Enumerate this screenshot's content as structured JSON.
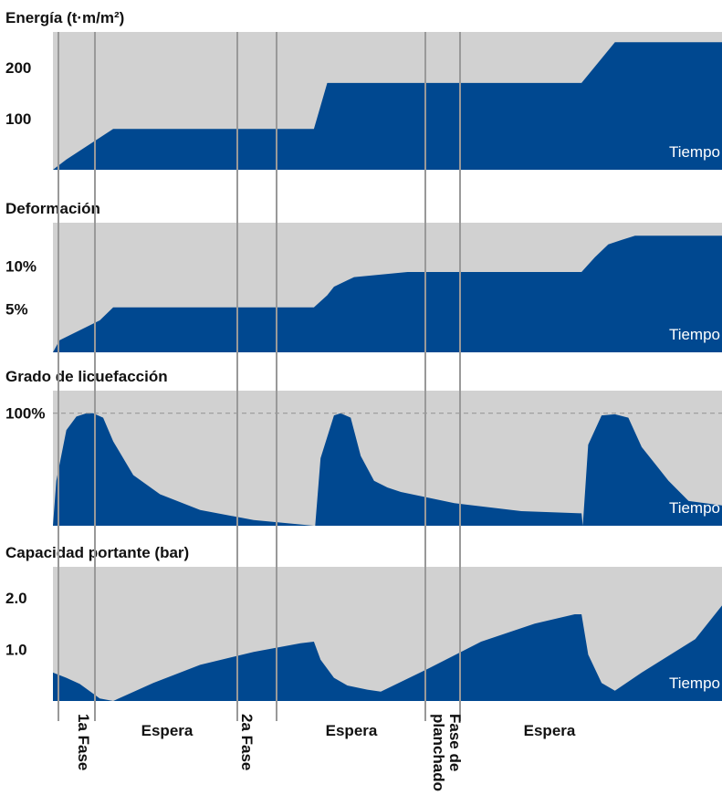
{
  "colors": {
    "fill": "#004890",
    "background_band": "#d1d1d1",
    "divider": "#999999",
    "dashed_line": "#999999",
    "text": "#111111",
    "axis_label_inside": "#ffffff"
  },
  "chart_data": [
    {
      "type": "area",
      "title": "Energía (t·m/m²)",
      "xlabel": "Tiempo",
      "ylim": [
        0,
        270
      ],
      "yticks": [
        {
          "value": 100,
          "label": "100"
        },
        {
          "value": 200,
          "label": "200"
        }
      ],
      "series": [
        {
          "x": [
            0.0,
            0.02,
            0.09,
            0.39,
            0.41,
            0.49,
            0.79,
            0.84,
            1.0
          ],
          "values": [
            0,
            20,
            80,
            80,
            170,
            170,
            170,
            250,
            250
          ]
        }
      ]
    },
    {
      "type": "area",
      "title": "Deformación",
      "xlabel": "Tiempo",
      "ylim": [
        0,
        15
      ],
      "yticks": [
        {
          "value": 5,
          "label": "5%"
        },
        {
          "value": 10,
          "label": "10%"
        }
      ],
      "series": [
        {
          "x": [
            0.0,
            0.01,
            0.07,
            0.09,
            0.39,
            0.41,
            0.42,
            0.45,
            0.53,
            0.79,
            0.81,
            0.83,
            0.85,
            0.87,
            1.0
          ],
          "values": [
            0,
            1.4,
            3.7,
            5.2,
            5.2,
            6.6,
            7.6,
            8.7,
            9.3,
            9.3,
            11.0,
            12.5,
            13.0,
            13.5,
            13.5
          ]
        }
      ]
    },
    {
      "type": "area",
      "title": "Grado de licuefacción",
      "xlabel": "Tiempo",
      "ylim": [
        0,
        120
      ],
      "yticks": [
        {
          "value": 100,
          "label": "100%"
        }
      ],
      "reference_line": 100,
      "series": [
        {
          "x": [
            0.0,
            0.005,
            0.02,
            0.035,
            0.05,
            0.06,
            0.075,
            0.09,
            0.12,
            0.16,
            0.22,
            0.3,
            0.39,
            0.392,
            0.4,
            0.42,
            0.43,
            0.445,
            0.46,
            0.48,
            0.5,
            0.52,
            0.6,
            0.7,
            0.79,
            0.792,
            0.8,
            0.82,
            0.84,
            0.86,
            0.88,
            0.92,
            0.95,
            1.0
          ],
          "values": [
            0,
            40,
            85,
            97,
            100,
            100,
            96,
            75,
            45,
            28,
            14,
            5,
            0,
            0,
            60,
            98,
            100,
            96,
            62,
            40,
            34,
            30,
            20,
            13,
            11,
            0,
            72,
            98,
            99,
            96,
            70,
            40,
            22,
            18
          ]
        }
      ]
    },
    {
      "type": "area",
      "title": "Capacidad portante (bar)",
      "xlabel": "Tiempo",
      "ylim": [
        0,
        2.6
      ],
      "yticks": [
        {
          "value": 1.0,
          "label": "1.0"
        },
        {
          "value": 2.0,
          "label": "2.0"
        }
      ],
      "series": [
        {
          "x": [
            0.0,
            0.02,
            0.04,
            0.07,
            0.09,
            0.15,
            0.22,
            0.3,
            0.37,
            0.39,
            0.4,
            0.42,
            0.44,
            0.47,
            0.49,
            0.56,
            0.64,
            0.72,
            0.78,
            0.79,
            0.8,
            0.82,
            0.84,
            0.88,
            0.96,
            1.0
          ],
          "values": [
            0.55,
            0.45,
            0.33,
            0.05,
            0.0,
            0.35,
            0.7,
            0.95,
            1.12,
            1.15,
            0.8,
            0.45,
            0.3,
            0.22,
            0.18,
            0.62,
            1.15,
            1.5,
            1.68,
            1.68,
            0.9,
            0.35,
            0.2,
            0.55,
            1.2,
            1.85
          ]
        }
      ]
    }
  ],
  "phase_labels": [
    {
      "label": "1a Fase"
    },
    {
      "label": "Espera"
    },
    {
      "label": "2a Fase"
    },
    {
      "label": "Espera"
    },
    {
      "label": "Fase de planchado"
    },
    {
      "label": "Espera"
    }
  ]
}
